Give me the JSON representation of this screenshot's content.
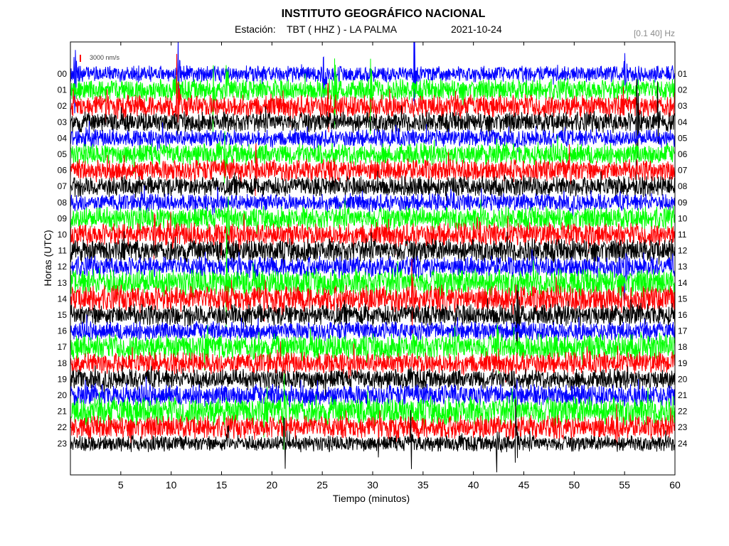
{
  "header": {
    "title": "INSTITUTO GEOGRÁFICO NACIONAL",
    "station_label": "Estación:",
    "station": "TBT ( HHZ ) - LA PALMA",
    "date": "2021-10-24",
    "filter": "[0.1 40] Hz"
  },
  "chart_data": {
    "type": "line",
    "xlabel": "Tiempo (minutos)",
    "ylabel": "Horas (UTC)",
    "xlim": [
      0,
      60
    ],
    "xticks": [
      5,
      10,
      15,
      20,
      25,
      30,
      35,
      40,
      45,
      50,
      55,
      60
    ],
    "scale_label": "3000 nm/s",
    "scale_color": "#ff0000",
    "colors": [
      "#0000ff",
      "#00ff00",
      "#ff0000",
      "#000000"
    ],
    "y_left_labels": [
      "00",
      "01",
      "02",
      "03",
      "04",
      "05",
      "06",
      "07",
      "08",
      "09",
      "10",
      "11",
      "12",
      "13",
      "14",
      "15",
      "16",
      "17",
      "18",
      "19",
      "20",
      "21",
      "22",
      "23"
    ],
    "y_right_labels": [
      "01",
      "02",
      "03",
      "04",
      "05",
      "06",
      "07",
      "08",
      "09",
      "10",
      "11",
      "12",
      "13",
      "14",
      "15",
      "16",
      "17",
      "18",
      "19",
      "20",
      "21",
      "22",
      "23",
      "24"
    ],
    "series_amplitude_scale": [
      0.55,
      0.75,
      0.8,
      0.7,
      0.6,
      0.75,
      0.75,
      0.7,
      0.6,
      0.8,
      0.8,
      0.8,
      0.7,
      0.95,
      0.9,
      0.75,
      0.65,
      0.9,
      0.75,
      0.7,
      0.75,
      1.0,
      0.8,
      0.55
    ],
    "events": [
      {
        "hour": 0,
        "minute": 0.4,
        "amp": 3.5
      },
      {
        "hour": 0,
        "minute": 10.7,
        "amp": 2.2
      },
      {
        "hour": 0,
        "minute": 25.1,
        "amp": 2.5
      },
      {
        "hour": 0,
        "minute": 34.1,
        "amp": 3.5
      },
      {
        "hour": 0,
        "minute": 55.0,
        "amp": 2.0
      },
      {
        "hour": 1,
        "minute": 14.2,
        "amp": 3.0
      },
      {
        "hour": 1,
        "minute": 15.5,
        "amp": 2.5
      },
      {
        "hour": 1,
        "minute": 26.2,
        "amp": 3.5
      },
      {
        "hour": 1,
        "minute": 29.8,
        "amp": 2.5
      },
      {
        "hour": 2,
        "minute": 10.6,
        "amp": 3.0
      },
      {
        "hour": 2,
        "minute": 25.6,
        "amp": 2.2
      },
      {
        "hour": 3,
        "minute": 56.2,
        "amp": 4.0
      },
      {
        "hour": 3,
        "minute": 58.3,
        "amp": 2.5
      },
      {
        "hour": 5,
        "minute": 15.3,
        "amp": 2.5
      },
      {
        "hour": 6,
        "minute": 18.4,
        "amp": 2.2
      },
      {
        "hour": 6,
        "minute": 49.5,
        "amp": 1.8
      },
      {
        "hour": 9,
        "minute": 15.6,
        "amp": 3.0
      },
      {
        "hour": 10,
        "minute": 8.3,
        "amp": 2.0
      },
      {
        "hour": 10,
        "minute": 51.5,
        "amp": 2.0
      },
      {
        "hour": 12,
        "minute": 55.0,
        "amp": 2.2
      },
      {
        "hour": 13,
        "minute": 15.5,
        "amp": 4.5
      },
      {
        "hour": 14,
        "minute": 33.9,
        "amp": 3.5
      },
      {
        "hour": 15,
        "minute": 44.3,
        "amp": 3.5
      },
      {
        "hour": 17,
        "minute": 42.4,
        "amp": 2.5
      },
      {
        "hour": 21,
        "minute": 21.2,
        "amp": 2.5
      },
      {
        "hour": 22,
        "minute": 54.1,
        "amp": 2.0
      },
      {
        "hour": 23,
        "minute": 15.5,
        "amp": 3.0
      },
      {
        "hour": 23,
        "minute": 21.2,
        "amp": 3.0
      },
      {
        "hour": 23,
        "minute": 33.8,
        "amp": 2.5
      },
      {
        "hour": 23,
        "minute": 42.3,
        "amp": 3.0
      },
      {
        "hour": 23,
        "minute": 44.2,
        "amp": 3.0
      }
    ]
  }
}
